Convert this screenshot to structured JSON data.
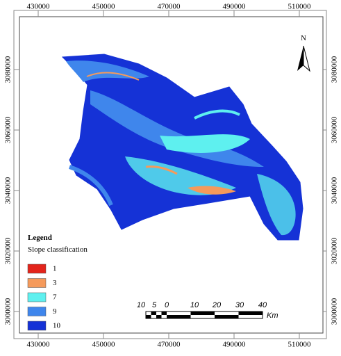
{
  "map": {
    "x_labels": [
      "430000",
      "450000",
      "470000",
      "490000",
      "510000"
    ],
    "y_labels": [
      "3080000",
      "3060000",
      "3040000",
      "3020000",
      "3000000"
    ],
    "north": "N",
    "legend": {
      "title": "Legend",
      "subtitle": "Slope classification",
      "items": [
        {
          "label": "1",
          "color": "#e3241b"
        },
        {
          "label": "3",
          "color": "#f59a5b"
        },
        {
          "label": "7",
          "color": "#5ef0ef"
        },
        {
          "label": "9",
          "color": "#3f86ec"
        },
        {
          "label": "10",
          "color": "#1532d6"
        }
      ]
    },
    "scale_bar": {
      "labels": [
        "10",
        "5",
        "0",
        "10",
        "20",
        "30",
        "40"
      ],
      "unit": "Km"
    }
  }
}
